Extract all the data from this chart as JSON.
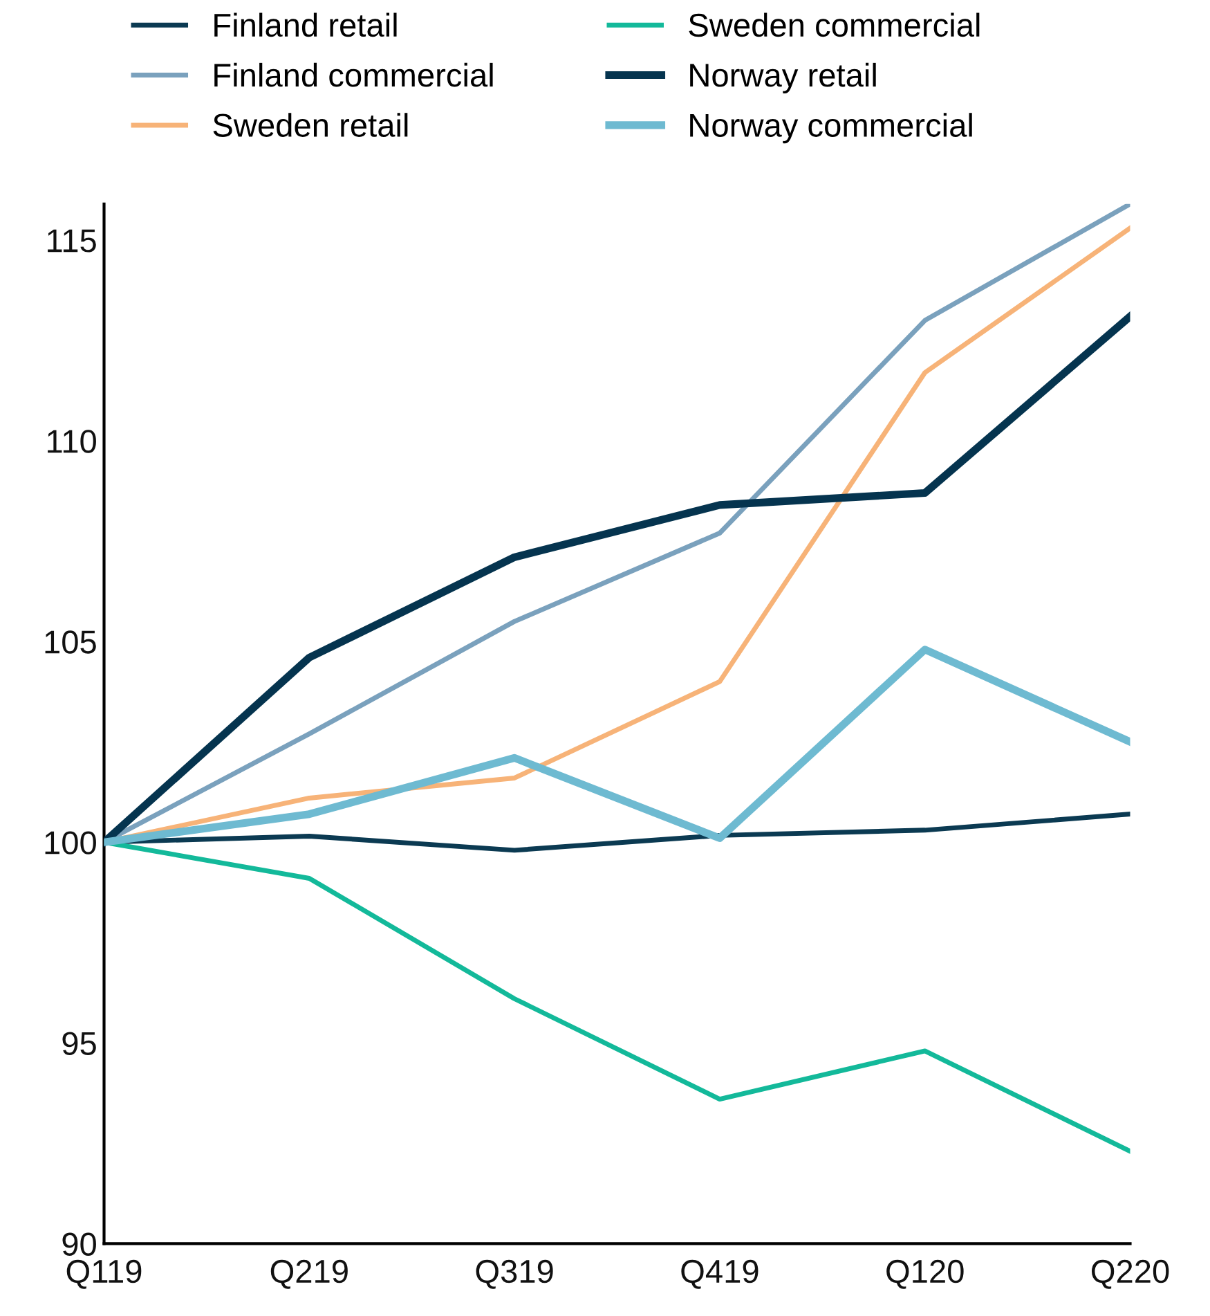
{
  "chart_data": {
    "type": "line",
    "categories": [
      "Q119",
      "Q219",
      "Q319",
      "Q419",
      "Q120",
      "Q220"
    ],
    "series": [
      {
        "name": "Finland retail",
        "color": "#0b3a52",
        "values": [
          100,
          100.15,
          99.8,
          100.17,
          100.3,
          100.7
        ]
      },
      {
        "name": "Finland commercial",
        "color": "#7aa1bd",
        "values": [
          100,
          102.7,
          105.5,
          107.7,
          113.0,
          115.9
        ]
      },
      {
        "name": "Sweden retail",
        "color": "#f7b378",
        "values": [
          100,
          101.1,
          101.6,
          104.0,
          111.7,
          115.3
        ]
      },
      {
        "name": "Sweden commercial",
        "color": "#13b99a",
        "values": [
          100,
          99.1,
          96.1,
          93.6,
          94.8,
          92.3
        ]
      },
      {
        "name": "Norway retail",
        "color": "#05344f",
        "values": [
          100,
          104.6,
          107.1,
          108.4,
          108.7,
          113.1
        ]
      },
      {
        "name": "Norway commercial",
        "color": "#6ebad1",
        "values": [
          100,
          100.7,
          102.1,
          100.1,
          104.8,
          102.5
        ]
      }
    ],
    "ylim": [
      90,
      115.9
    ],
    "yticks": [
      90,
      95,
      100,
      105,
      110,
      115
    ],
    "grid": false,
    "legend": "top",
    "marker": "none",
    "line_style": "solid"
  }
}
